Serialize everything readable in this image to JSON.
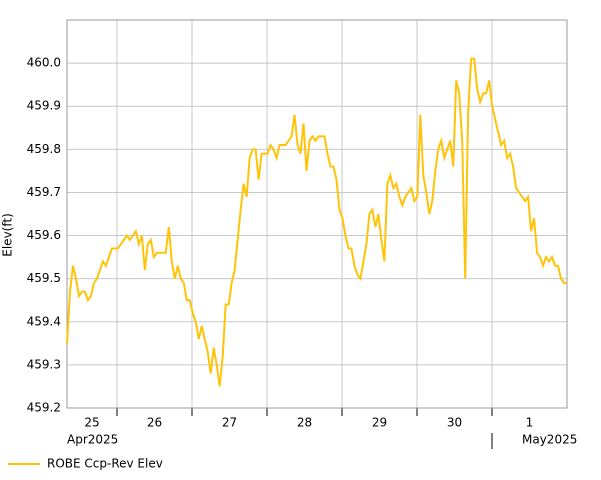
{
  "chart_data": {
    "type": "line",
    "y_label": "Elev(ft)",
    "x_labels": [
      "25",
      "26",
      "27",
      "28",
      "29",
      "30",
      "1"
    ],
    "month_labels": [
      "Apr2025",
      "May2025"
    ],
    "ylim": [
      459.2,
      460.1
    ],
    "yticks": [
      459.2,
      459.3,
      459.4,
      459.5,
      459.6,
      459.7,
      459.8,
      459.9,
      {
        "value": 460,
        "label": "460.0"
      }
    ],
    "grid": true,
    "legend": "bottom-left",
    "series": [
      {
        "name": "ROBE Ccp-Rev Elev",
        "color": "#ffc40a",
        "values": [
          459.35,
          459.47,
          459.53,
          459.5,
          459.46,
          459.47,
          459.47,
          459.45,
          459.46,
          459.49,
          459.5,
          459.52,
          459.54,
          459.53,
          459.55,
          459.57,
          459.57,
          459.57,
          459.58,
          459.59,
          459.6,
          459.59,
          459.6,
          459.61,
          459.58,
          459.6,
          459.52,
          459.58,
          459.59,
          459.55,
          459.56,
          459.56,
          459.56,
          459.56,
          459.62,
          459.54,
          459.5,
          459.53,
          459.5,
          459.49,
          459.45,
          459.45,
          459.42,
          459.4,
          459.36,
          459.39,
          459.36,
          459.33,
          459.28,
          459.34,
          459.3,
          459.25,
          459.32,
          459.44,
          459.44,
          459.49,
          459.52,
          459.59,
          459.66,
          459.72,
          459.69,
          459.78,
          459.8,
          459.8,
          459.73,
          459.79,
          459.79,
          459.79,
          459.81,
          459.8,
          459.78,
          459.81,
          459.81,
          459.81,
          459.82,
          459.83,
          459.88,
          459.81,
          459.79,
          459.86,
          459.75,
          459.82,
          459.83,
          459.82,
          459.83,
          459.83,
          459.83,
          459.79,
          459.76,
          459.76,
          459.73,
          459.66,
          459.64,
          459.6,
          459.57,
          459.57,
          459.53,
          459.51,
          459.5,
          459.54,
          459.58,
          459.65,
          459.66,
          459.62,
          459.65,
          459.59,
          459.54,
          459.72,
          459.74,
          459.71,
          459.72,
          459.69,
          459.67,
          459.69,
          459.7,
          459.71,
          459.68,
          459.69,
          459.88,
          459.74,
          459.7,
          459.65,
          459.68,
          459.75,
          459.8,
          459.82,
          459.78,
          459.8,
          459.82,
          459.76,
          459.96,
          459.93,
          459.82,
          459.5,
          459.89,
          460.01,
          460.01,
          459.94,
          459.91,
          459.93,
          459.93,
          459.96,
          459.9,
          459.87,
          459.84,
          459.81,
          459.82,
          459.78,
          459.79,
          459.76,
          459.71,
          459.7,
          459.69,
          459.68,
          459.69,
          459.61,
          459.64,
          459.56,
          459.55,
          459.53,
          459.55,
          459.54,
          459.55,
          459.53,
          459.53,
          459.5,
          459.49,
          459.49
        ]
      }
    ]
  }
}
